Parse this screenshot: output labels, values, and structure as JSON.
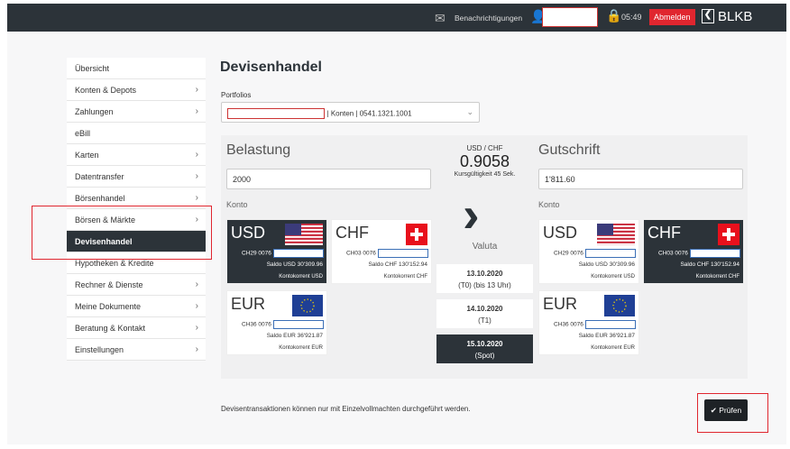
{
  "header": {
    "notifications": "Benachrichtigungen",
    "time": "05:49",
    "logout": "Abmelden",
    "logo": "BLKB"
  },
  "sidebar": {
    "items": [
      {
        "label": "Übersicht",
        "chevron": false
      },
      {
        "label": "Konten & Depots",
        "chevron": true
      },
      {
        "label": "Zahlungen",
        "chevron": true
      },
      {
        "label": "eBill",
        "chevron": false
      },
      {
        "label": "Karten",
        "chevron": true
      },
      {
        "label": "Datentransfer",
        "chevron": true
      },
      {
        "label": "Börsenhandel",
        "chevron": true
      },
      {
        "label": "Börsen & Märkte",
        "chevron": true
      },
      {
        "label": "Devisenhandel",
        "chevron": false,
        "active": true
      },
      {
        "label": "Hypotheken & Kredite",
        "chevron": false
      },
      {
        "label": "Rechner & Dienste",
        "chevron": true
      },
      {
        "label": "Meine Dokumente",
        "chevron": true
      },
      {
        "label": "Beratung & Kontakt",
        "chevron": true
      },
      {
        "label": "Einstellungen",
        "chevron": true
      }
    ]
  },
  "main": {
    "title": "Devisenhandel",
    "portfolios_label": "Portfolios",
    "portfolio_value": "| Konten | 0541.1321.1001",
    "debit": {
      "title": "Belastung",
      "amount": "2000",
      "konto_label": "Konto"
    },
    "credit": {
      "title": "Gutschrift",
      "amount": "1'811.60",
      "konto_label": "Konto"
    },
    "rate": {
      "pair": "USD / CHF",
      "value": "0.9058",
      "validity": "Kursgültigkeit 45 Sek."
    },
    "valuta_label": "Valuta",
    "dates": [
      {
        "date": "13.10.2020",
        "note": "(T0) (bis 13 Uhr)"
      },
      {
        "date": "14.10.2020",
        "note": "(T1)"
      },
      {
        "date": "15.10.2020",
        "note": "(Spot)",
        "selected": true
      }
    ],
    "debit_accounts": [
      {
        "cur": "USD",
        "iban": "CH29 0076",
        "saldo": "Saldo USD 30'309.96",
        "type": "Kontokorrent USD",
        "selected": true
      },
      {
        "cur": "CHF",
        "iban": "CH03 0076",
        "saldo": "Saldo CHF 130'152.94",
        "type": "Kontokorrent CHF"
      },
      {
        "cur": "EUR",
        "iban": "CH36 0076",
        "saldo": "Saldo EUR 36'921.87",
        "type": "Kontokorrent EUR"
      }
    ],
    "credit_accounts": [
      {
        "cur": "USD",
        "iban": "CH29 0076",
        "saldo": "Saldo USD 30'309.96",
        "type": "Kontokorrent USD"
      },
      {
        "cur": "CHF",
        "iban": "CH03 0076",
        "saldo": "Saldo CHF 130'152.94",
        "type": "Kontokorrent CHF",
        "selected": true
      },
      {
        "cur": "EUR",
        "iban": "CH36 0076",
        "saldo": "Saldo EUR 36'921.87",
        "type": "Kontokorrent EUR"
      }
    ],
    "footnote": "Devisentransaktionen können nur mit Einzelvollmachten durchgeführt werden.",
    "check_button": "Prüfen"
  },
  "colors": {
    "dark": "#2c3339",
    "accent_red": "#e0262f"
  }
}
